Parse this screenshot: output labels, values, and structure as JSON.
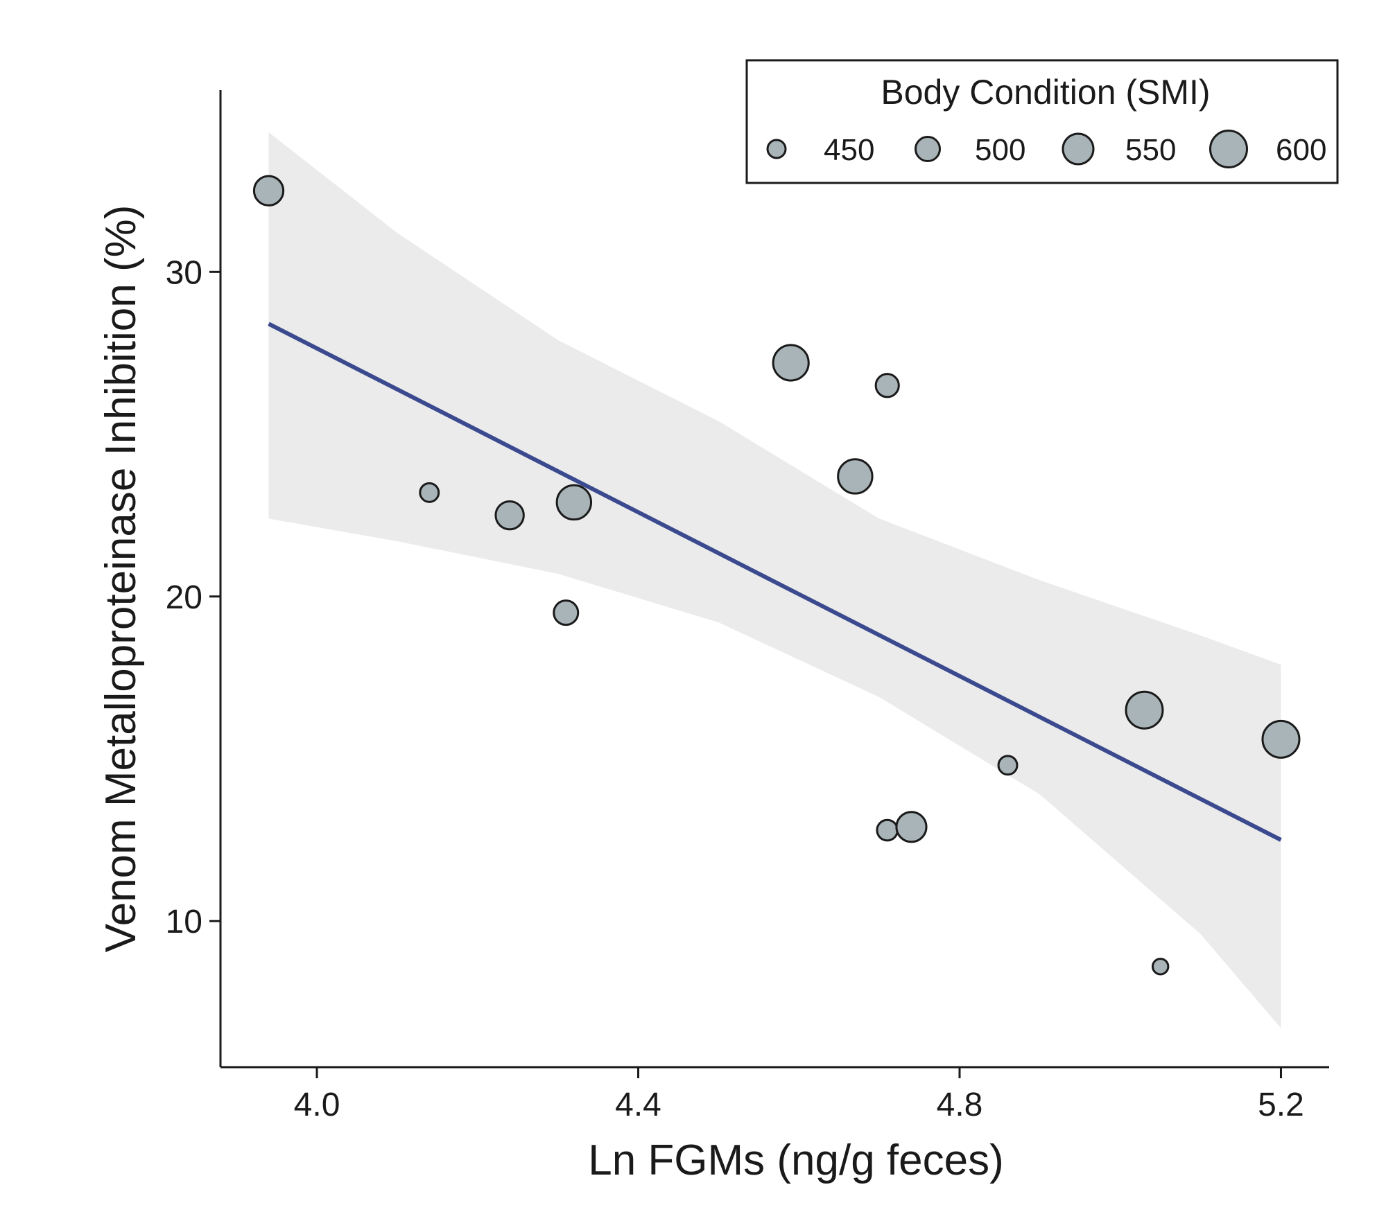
{
  "chart_data": {
    "type": "scatter",
    "xlabel": "Ln FGMs (ng/g feces)",
    "ylabel": "Venom Metalloproteinase Inhibition (%)",
    "xlim": [
      3.88,
      5.26
    ],
    "ylim": [
      5.5,
      35.6
    ],
    "x_ticks": [
      4.0,
      4.4,
      4.8,
      5.2
    ],
    "x_tick_labels": [
      "4.0",
      "4.4",
      "4.8",
      "5.2"
    ],
    "y_ticks": [
      10,
      20,
      30
    ],
    "y_tick_labels": [
      "10",
      "20",
      "30"
    ],
    "grid": false,
    "colors": {
      "point_fill": "#a9b4b8",
      "point_stroke": "#1a1a1a",
      "fit_line": "#3b4a8f",
      "confidence_band": "#ebebeb"
    },
    "legend": {
      "title": "Body Condition (SMI)",
      "placement": "top-right",
      "entries": [
        {
          "label": "450",
          "smi": 450
        },
        {
          "label": "500",
          "smi": 500
        },
        {
          "label": "550",
          "smi": 550
        },
        {
          "label": "600",
          "smi": 600
        }
      ]
    },
    "points": [
      {
        "x": 3.94,
        "y": 32.5,
        "smi": 540
      },
      {
        "x": 4.14,
        "y": 23.2,
        "smi": 455
      },
      {
        "x": 4.24,
        "y": 22.5,
        "smi": 530
      },
      {
        "x": 4.32,
        "y": 22.9,
        "smi": 580
      },
      {
        "x": 4.31,
        "y": 19.5,
        "smi": 500
      },
      {
        "x": 4.59,
        "y": 27.2,
        "smi": 590
      },
      {
        "x": 4.71,
        "y": 26.5,
        "smi": 490
      },
      {
        "x": 4.67,
        "y": 23.7,
        "smi": 580
      },
      {
        "x": 4.71,
        "y": 12.8,
        "smi": 470
      },
      {
        "x": 4.74,
        "y": 12.9,
        "smi": 545
      },
      {
        "x": 4.86,
        "y": 14.8,
        "smi": 455
      },
      {
        "x": 5.03,
        "y": 16.5,
        "smi": 600
      },
      {
        "x": 5.05,
        "y": 8.6,
        "smi": 430
      },
      {
        "x": 5.2,
        "y": 15.6,
        "smi": 600
      }
    ],
    "fit": {
      "x": [
        3.94,
        5.2
      ],
      "y": [
        28.4,
        12.5
      ]
    },
    "confidence_band": {
      "x": [
        3.94,
        4.1,
        4.3,
        4.5,
        4.7,
        4.9,
        5.1,
        5.2
      ],
      "upper": [
        34.3,
        31.2,
        27.9,
        25.4,
        22.4,
        20.5,
        18.8,
        17.9
      ],
      "lower": [
        22.4,
        21.7,
        20.7,
        19.2,
        16.9,
        13.9,
        9.6,
        6.7
      ]
    }
  }
}
